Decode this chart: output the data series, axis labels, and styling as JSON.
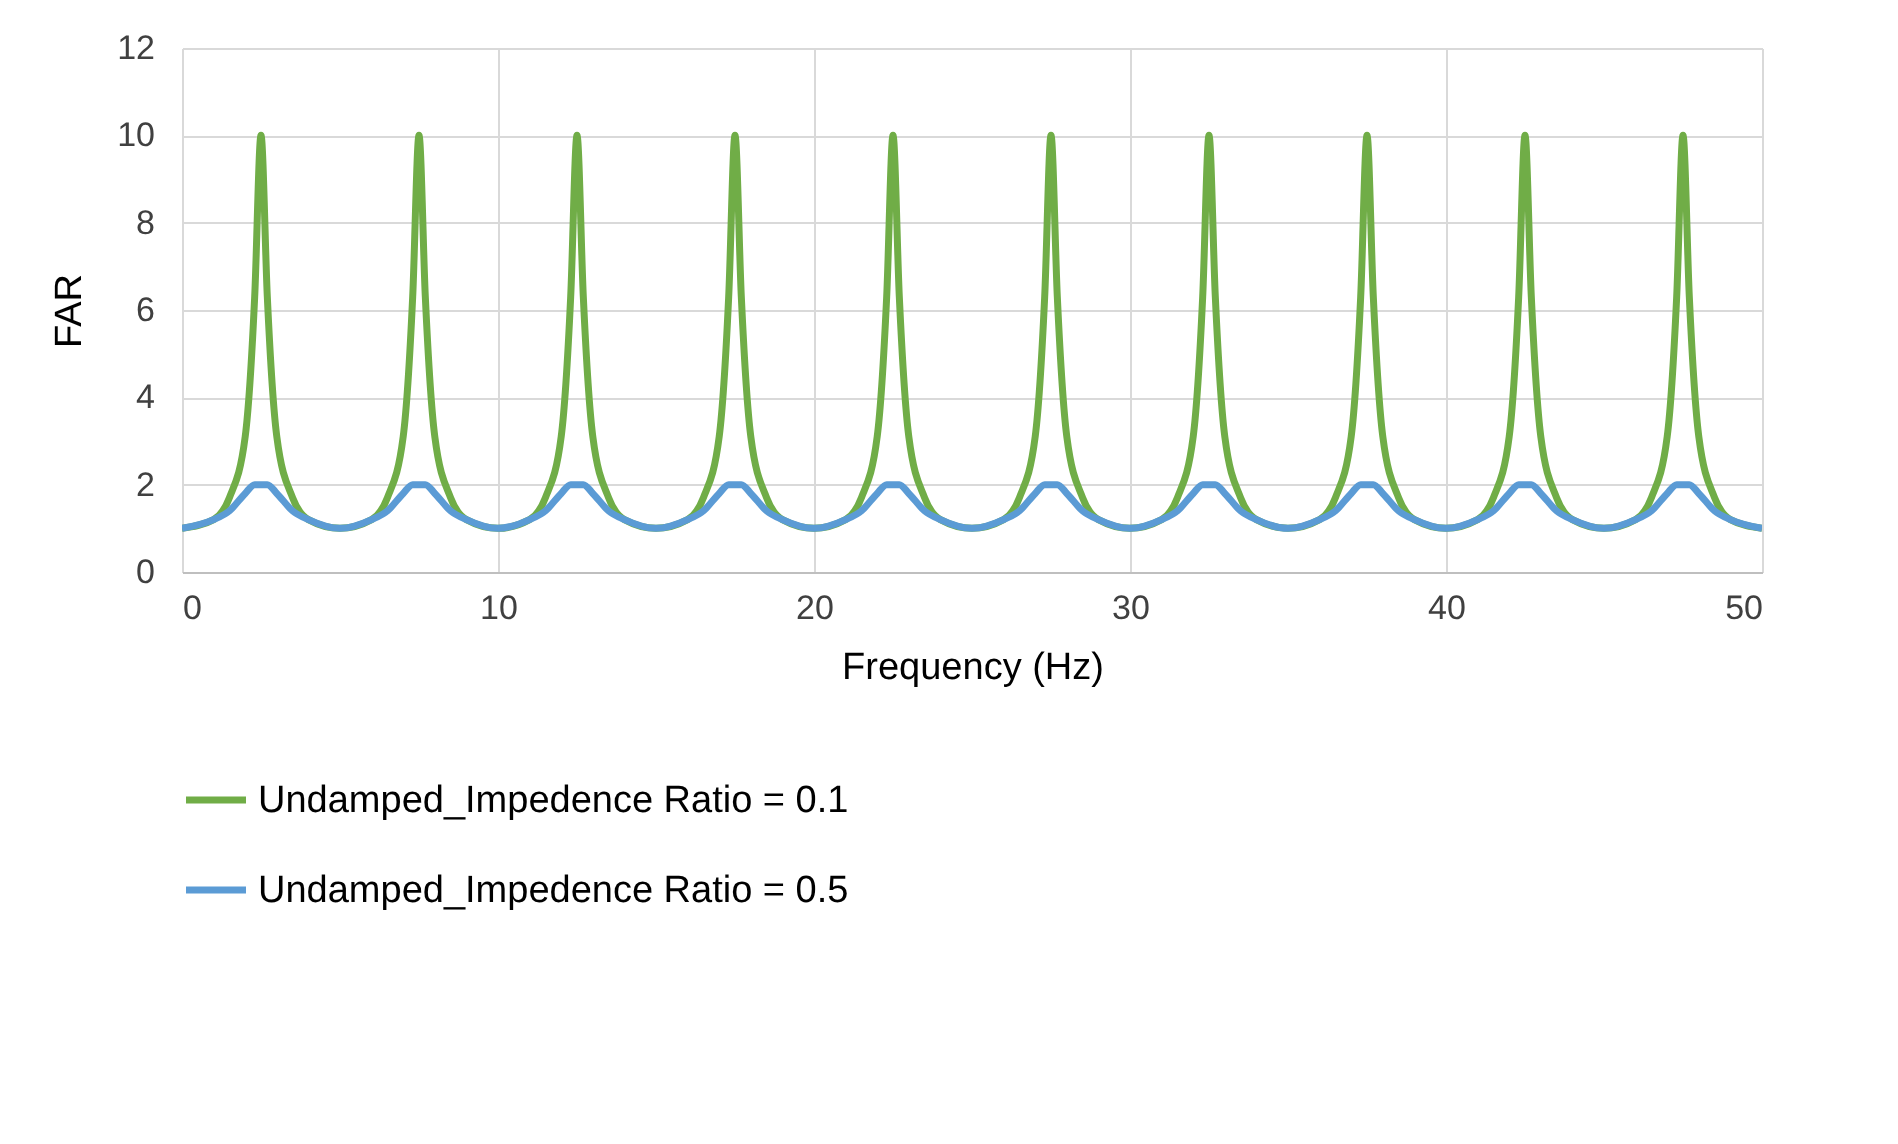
{
  "chart_data": {
    "type": "line",
    "xlabel": "Frequency (Hz)",
    "ylabel": "FAR",
    "x": [
      0,
      1,
      1.5,
      2,
      2.3,
      2.5,
      2.7,
      3,
      3.5,
      4,
      5,
      6,
      6.5,
      7,
      7.3,
      7.5,
      7.7,
      8,
      8.5,
      9,
      10,
      11,
      11.5,
      12,
      12.3,
      12.5,
      12.7,
      13,
      13.5,
      14,
      15,
      16,
      16.5,
      17,
      17.3,
      17.5,
      17.7,
      18,
      18.5,
      19,
      20,
      21,
      21.5,
      22,
      22.3,
      22.5,
      22.7,
      23,
      23.5,
      24,
      25,
      26,
      26.5,
      27,
      27.3,
      27.5,
      27.7,
      28,
      28.5,
      29,
      30,
      31,
      31.5,
      32,
      32.3,
      32.5,
      32.7,
      33,
      33.5,
      34,
      35,
      36,
      36.5,
      37,
      37.3,
      37.5,
      37.7,
      38,
      38.5,
      39,
      40,
      41,
      41.5,
      42,
      42.3,
      42.5,
      42.7,
      43,
      43.5,
      44,
      45,
      46,
      46.5,
      47,
      47.3,
      47.5,
      47.7,
      48,
      48.5,
      49,
      50
    ],
    "series": [
      {
        "name": "Undamped_Impedence Ratio = 0.1",
        "color": "#70ad47",
        "values": [
          1,
          1.2,
          1.7,
          3.1,
          6.3,
          10,
          6.3,
          3.1,
          1.7,
          1.2,
          1,
          1.2,
          1.7,
          3.1,
          6.3,
          10,
          6.3,
          3.1,
          1.7,
          1.2,
          1,
          1.2,
          1.7,
          3.1,
          6.3,
          10,
          6.3,
          3.1,
          1.7,
          1.2,
          1,
          1.2,
          1.7,
          3.1,
          6.3,
          10,
          6.3,
          3.1,
          1.7,
          1.2,
          1,
          1.2,
          1.7,
          3.1,
          6.3,
          10,
          6.3,
          3.1,
          1.7,
          1.2,
          1,
          1.2,
          1.7,
          3.1,
          6.3,
          10,
          6.3,
          3.1,
          1.7,
          1.2,
          1,
          1.2,
          1.7,
          3.1,
          6.3,
          10,
          6.3,
          3.1,
          1.7,
          1.2,
          1,
          1.2,
          1.7,
          3.1,
          6.3,
          10,
          6.3,
          3.1,
          1.7,
          1.2,
          1,
          1.2,
          1.7,
          3.1,
          6.3,
          10,
          6.3,
          3.1,
          1.7,
          1.2,
          1,
          1.2,
          1.7,
          3.1,
          6.3,
          10,
          6.3,
          3.1,
          1.7,
          1.2,
          1
        ]
      },
      {
        "name": "Undamped_Impedence Ratio = 0.5",
        "color": "#5b9bd5",
        "values": [
          1,
          1.2,
          1.4,
          1.8,
          2,
          2,
          2,
          1.8,
          1.4,
          1.2,
          1,
          1.2,
          1.4,
          1.8,
          2,
          2,
          2,
          1.8,
          1.4,
          1.2,
          1,
          1.2,
          1.4,
          1.8,
          2,
          2,
          2,
          1.8,
          1.4,
          1.2,
          1,
          1.2,
          1.4,
          1.8,
          2,
          2,
          2,
          1.8,
          1.4,
          1.2,
          1,
          1.2,
          1.4,
          1.8,
          2,
          2,
          2,
          1.8,
          1.4,
          1.2,
          1,
          1.2,
          1.4,
          1.8,
          2,
          2,
          2,
          1.8,
          1.4,
          1.2,
          1,
          1.2,
          1.4,
          1.8,
          2,
          2,
          2,
          1.8,
          1.4,
          1.2,
          1,
          1.2,
          1.4,
          1.8,
          2,
          2,
          2,
          1.8,
          1.4,
          1.2,
          1,
          1.2,
          1.4,
          1.8,
          2,
          2,
          2,
          1.8,
          1.4,
          1.2,
          1,
          1.2,
          1.4,
          1.8,
          2,
          2,
          2,
          1.8,
          1.4,
          1.2,
          1
        ]
      }
    ],
    "xlim": [
      0,
      50
    ],
    "xticks": [
      0,
      10,
      20,
      30,
      40,
      50
    ],
    "ylim": [
      0,
      12
    ],
    "yticks": [
      0,
      2,
      4,
      6,
      8,
      10,
      12
    ],
    "grid": true,
    "legend": "bottom",
    "marker": "none",
    "line_style": "solid"
  }
}
